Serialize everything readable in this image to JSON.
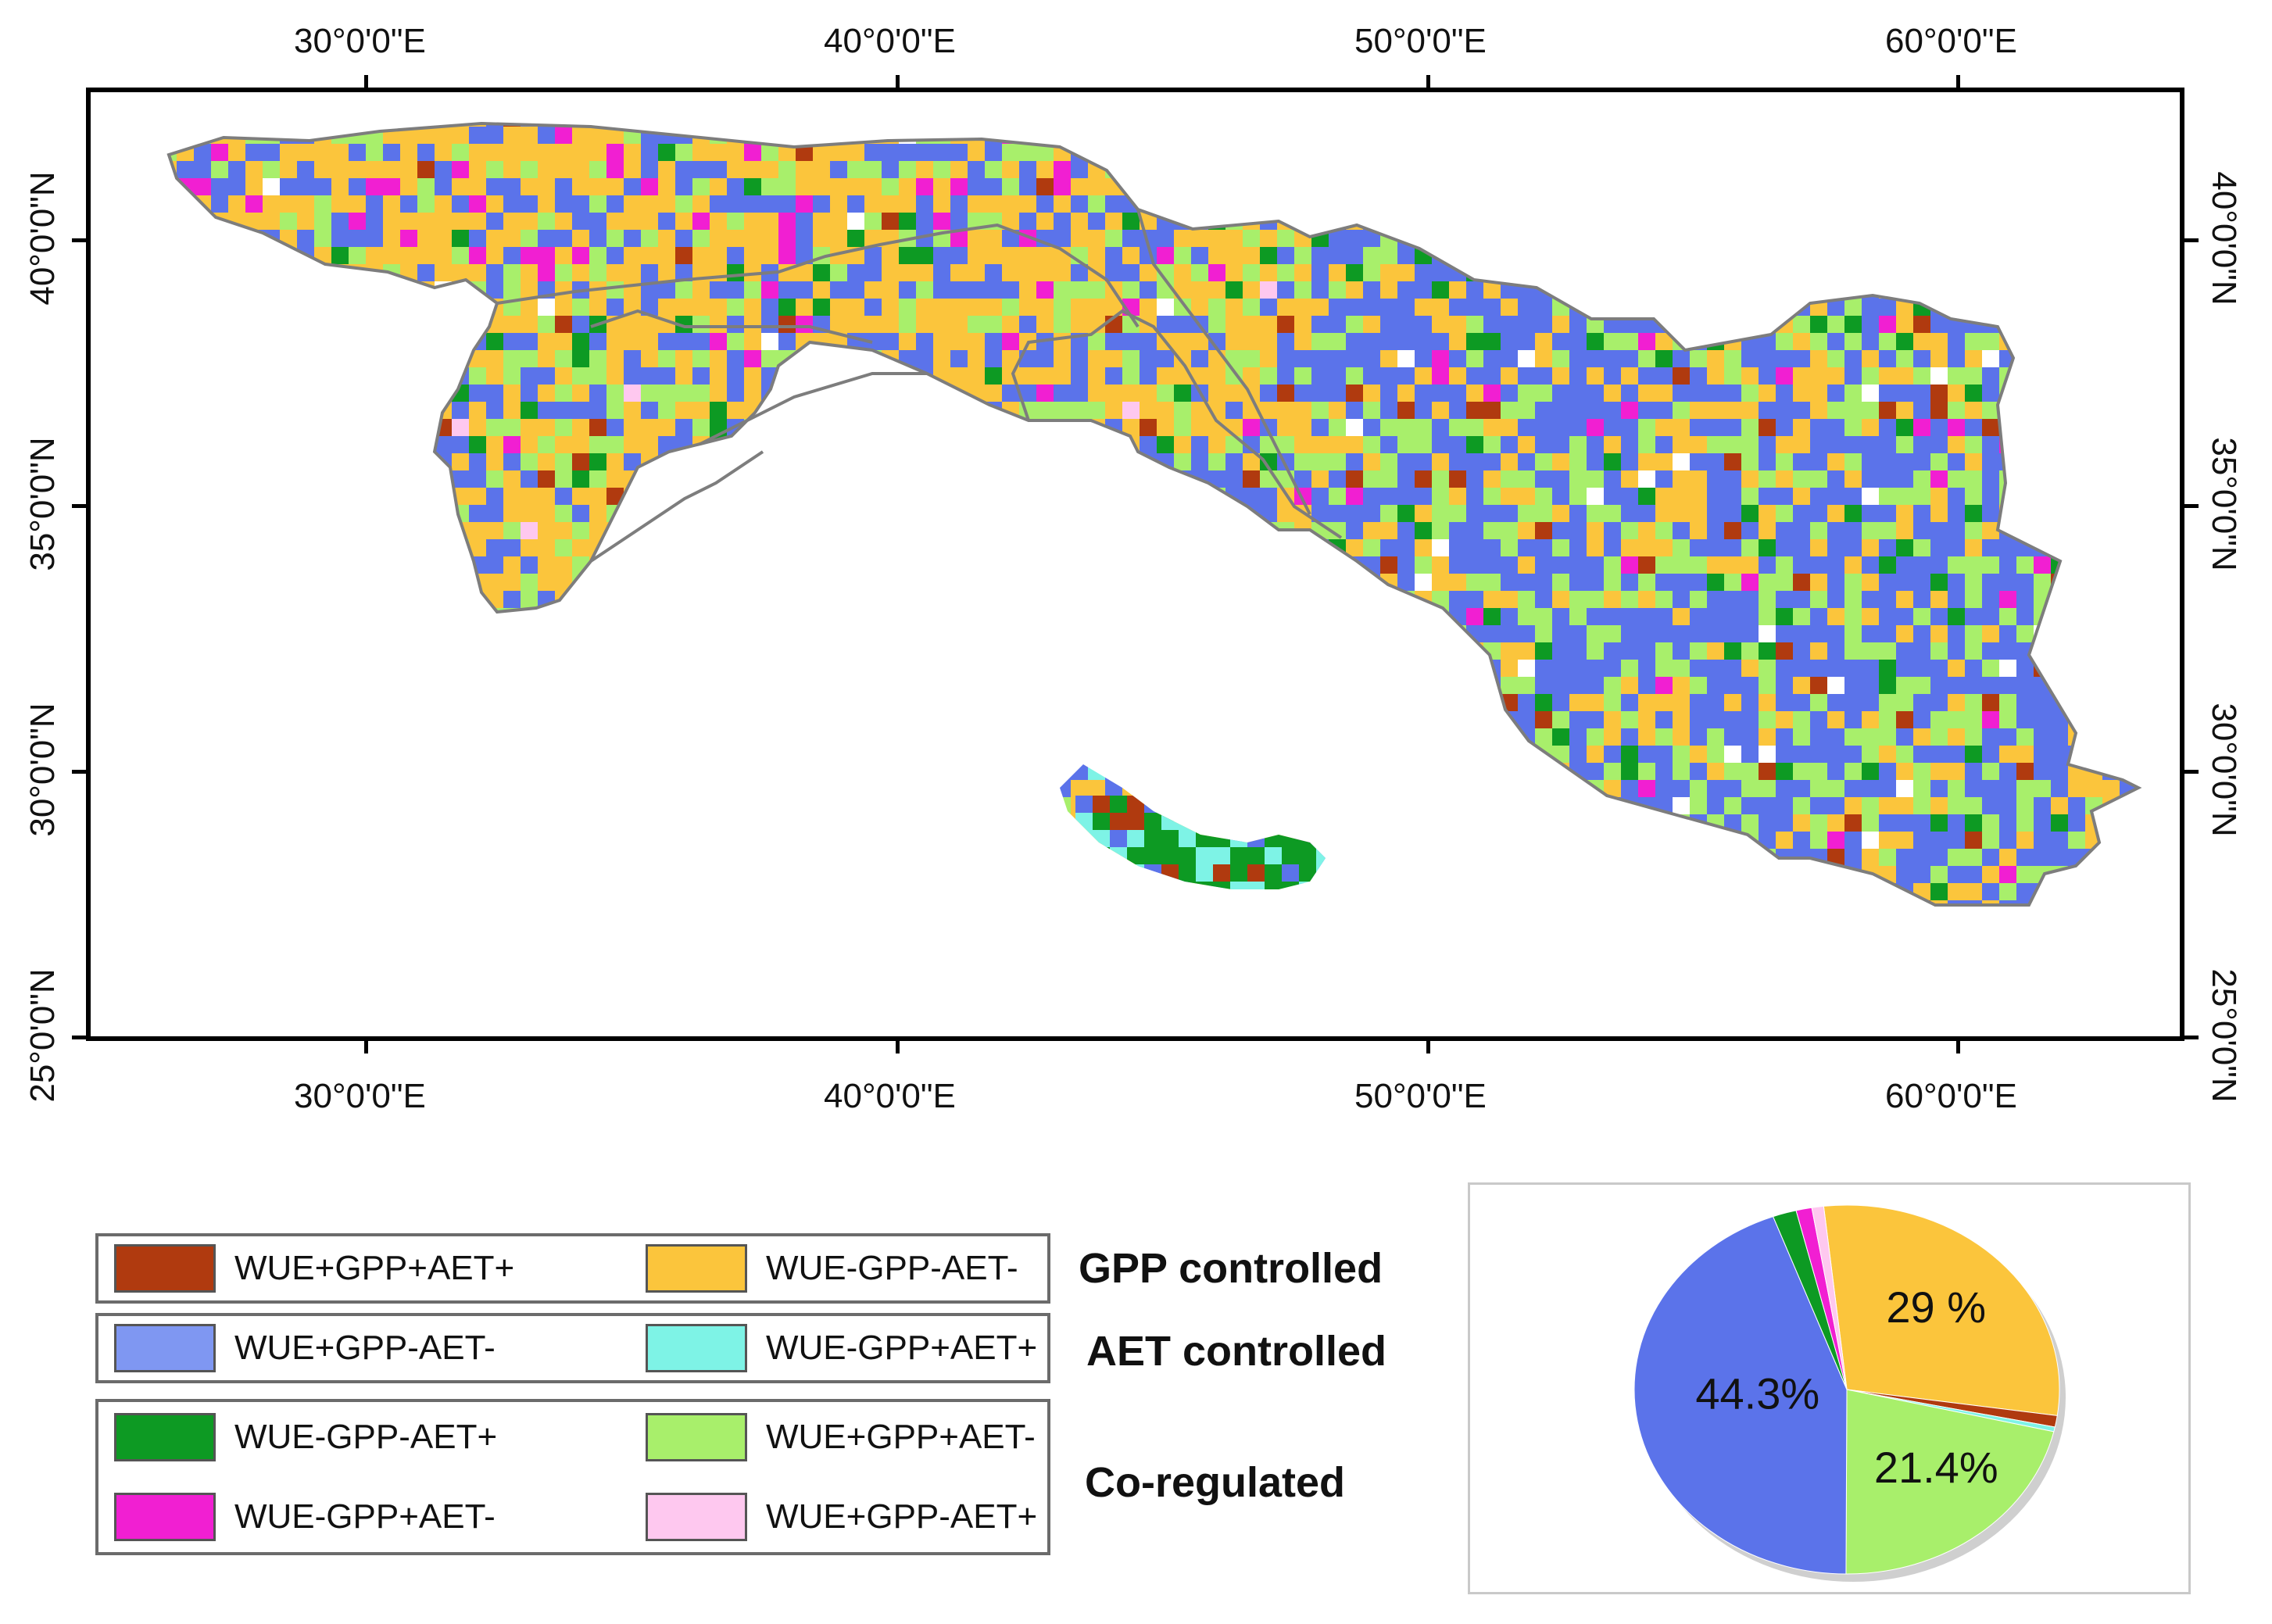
{
  "map": {
    "top_lon_labels": [
      "30°0'0\"E",
      "40°0'0\"E",
      "50°0'0\"E",
      "60°0'0\"E"
    ],
    "bottom_lon_labels": [
      "30°0'0\"E",
      "40°0'0\"E",
      "50°0'0\"E",
      "60°0'0\"E"
    ],
    "left_lat_labels": [
      "40°0'0\"N",
      "35°0'0\"N",
      "30°0'0\"N",
      "25°0'0\"N"
    ],
    "right_lat_labels": [
      "40°0'0\"N",
      "35°0'0\"N",
      "30°0'0\"N",
      "25°0'0\"N"
    ],
    "lon_values": [
      30,
      40,
      50,
      60
    ],
    "lat_values": [
      40,
      35,
      30,
      25
    ],
    "extent": {
      "lon_min": 25,
      "lon_max": 64.5,
      "lat_min": 24.7,
      "lat_max": 43
    },
    "border_color": "#7d7d7d"
  },
  "legend": {
    "groups": [
      {
        "label": "GPP controlled",
        "items": [
          {
            "label": "WUE+GPP+AET+",
            "color": "#b03a0f"
          },
          {
            "label": "WUE-GPP-AET-",
            "color": "#fbc53c"
          }
        ]
      },
      {
        "label": "AET controlled",
        "items": [
          {
            "label": "WUE+GPP-AET-",
            "color": "#7f97f2"
          },
          {
            "label": "WUE-GPP+AET+",
            "color": "#7ef3e6"
          }
        ]
      },
      {
        "label": "Co-regulated",
        "items": [
          {
            "label": "WUE-GPP-AET+",
            "color": "#0d9a23"
          },
          {
            "label": "WUE+GPP+AET-",
            "color": "#a8ef6b"
          },
          {
            "label": "WUE-GPP+AET-",
            "color": "#f11fd2"
          },
          {
            "label": "WUE+GPP-AET+",
            "color": "#fec8ef"
          }
        ]
      }
    ]
  },
  "chart_data": {
    "type": "pie",
    "title": "",
    "slices": [
      {
        "name": "WUE-GPP-AET-",
        "value": 29.0,
        "label": "29 %",
        "color": "#fbc53c"
      },
      {
        "name": "WUE+GPP+AET+",
        "value": 1.0,
        "label": "",
        "color": "#b03a0f"
      },
      {
        "name": "WUE-GPP+AET+",
        "value": 0.4,
        "label": "",
        "color": "#7ef3e6"
      },
      {
        "name": "WUE+GPP+AET-",
        "value": 21.4,
        "label": "21.4%",
        "color": "#a8ef6b"
      },
      {
        "name": "WUE+GPP-AET-",
        "value": 44.3,
        "label": "44.3%",
        "color": "#5b73ea"
      },
      {
        "name": "WUE-GPP-AET+",
        "value": 1.8,
        "label": "",
        "color": "#0d9a23"
      },
      {
        "name": "WUE-GPP+AET-",
        "value": 1.2,
        "label": "",
        "color": "#f11fd2"
      },
      {
        "name": "WUE+GPP-AET+",
        "value": 0.9,
        "label": "",
        "color": "#fec8ef"
      }
    ]
  }
}
